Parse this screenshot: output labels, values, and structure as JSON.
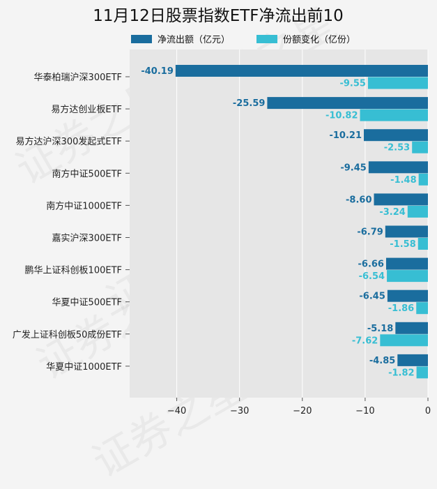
{
  "chart_data": {
    "type": "bar",
    "orientation": "horizontal",
    "title": "11月12日股票指数ETF净流出前10",
    "categories": [
      "华泰柏瑞沪深300ETF",
      "易方达创业板ETF",
      "易方达沪深300发起式ETF",
      "南方中证500ETF",
      "南方中证1000ETF",
      "嘉实沪深300ETF",
      "鹏华上证科创板100ETF",
      "华夏中证500ETF",
      "广发上证科创板50成份ETF",
      "华夏中证1000ETF"
    ],
    "series": [
      {
        "name": "净流出额（亿元）",
        "color": "#1a6d9e",
        "label_color": "#1a6d9e",
        "values": [
          -40.19,
          -25.59,
          -10.21,
          -9.45,
          -8.6,
          -6.79,
          -6.66,
          -6.45,
          -5.18,
          -4.85
        ],
        "labels": [
          "-40.19",
          "-25.59",
          "-10.21",
          "-9.45",
          "-8.60",
          "-6.79",
          "-6.66",
          "-6.45",
          "-5.18",
          "-4.85"
        ]
      },
      {
        "name": "份额变化（亿份）",
        "color": "#37bed3",
        "label_color": "#37bed3",
        "values": [
          -9.55,
          -10.82,
          -2.53,
          -1.48,
          -3.24,
          -1.58,
          -6.54,
          -1.86,
          -7.62,
          -1.82
        ],
        "labels": [
          "-9.55",
          "-10.82",
          "-2.53",
          "-1.48",
          "-3.24",
          "-1.58",
          "-6.54",
          "-1.86",
          "-7.62",
          "-1.82"
        ]
      }
    ],
    "xlim": [
      -47.5,
      0
    ],
    "xticks": [
      -40,
      -30,
      -20,
      -10,
      0
    ],
    "xtick_labels": [
      "−40",
      "−30",
      "−20",
      "−10",
      "0"
    ],
    "grid": true,
    "legend_position": "top",
    "watermark": "证券之星"
  }
}
